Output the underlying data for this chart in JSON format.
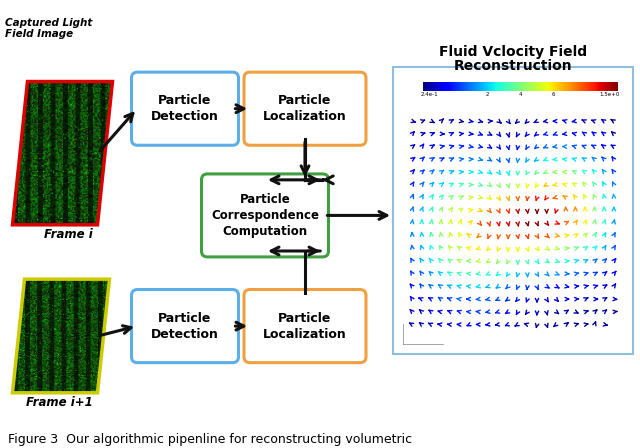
{
  "title_line1": "Fluid Vclocity Field",
  "title_line2": "Reconstruction",
  "caption": "Figure 3  Our algorithmic pipenline for reconstructing volumetric",
  "frame_i_label": "Frame i",
  "frame_i1_label": "Frame i+1",
  "captured_label": "Captured Light\nField Image",
  "box1_top_label": "Particle\nDetection",
  "box2_top_label": "Particle\nLocalization",
  "box_middle_label": "Particle\nCorrespondence\nComputation",
  "box1_bot_label": "Particle\nDetection",
  "box2_bot_label": "Particle\nLocalization",
  "bg_color": "#ffffff",
  "frame_i_border": "#dd0000",
  "frame_i1_border": "#cccc00",
  "box_blue_edge": "#5baee8",
  "box_orange_edge": "#f0a040",
  "box_green_edge": "#40a040",
  "arrow_color": "#111111",
  "velocity_box_edge": "#90bedd",
  "colorbar_label_left": "2.4e-1",
  "colorbar_label_mid1": "2",
  "colorbar_label_mid2": "4",
  "colorbar_label_mid3": "6",
  "colorbar_label_right": "1.5e+0"
}
